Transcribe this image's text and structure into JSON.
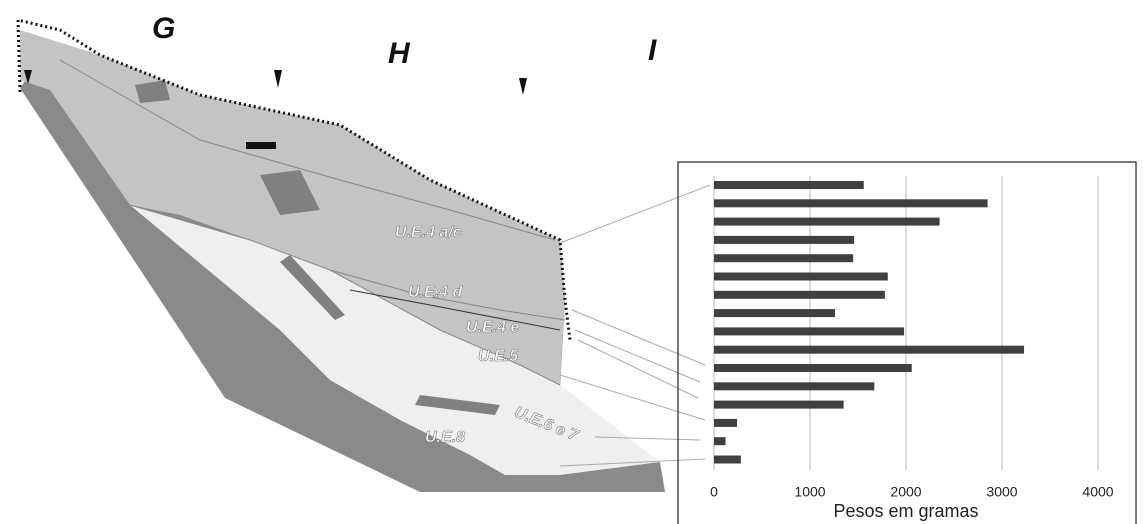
{
  "section": {
    "columns": [
      "G",
      "H",
      "I"
    ],
    "units": [
      "U.E.4 a/c",
      "U.E.4 d",
      "U.E.4 e",
      "U.E.5",
      "U.E.6 e 7",
      "U.E.8"
    ]
  },
  "chart_data": {
    "type": "bar",
    "orientation": "horizontal",
    "xlabel": "Pesos em gramas",
    "categories": [
      null,
      null,
      null,
      null,
      null,
      null,
      null,
      null,
      null,
      null,
      null,
      null,
      null,
      null,
      null,
      null
    ],
    "values": [
      1560,
      2850,
      2350,
      1460,
      1450,
      1810,
      1780,
      1260,
      1980,
      3230,
      2060,
      1670,
      1350,
      240,
      120,
      280
    ],
    "color": "#404040",
    "xlim": [
      0,
      4000
    ],
    "xticks": [
      0,
      1000,
      2000,
      3000,
      4000
    ],
    "grid": true
  }
}
